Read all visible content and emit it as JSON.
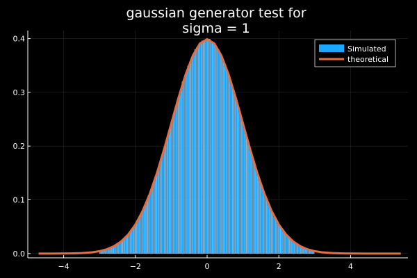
{
  "chart_data": {
    "type": "bar",
    "title_lines": [
      "gaussian generator test for",
      "sigma = 1"
    ],
    "xlabel": "",
    "ylabel": "",
    "xlim": [
      -5.0,
      5.6
    ],
    "ylim": [
      -0.008,
      0.415
    ],
    "x_ticks": [
      -4,
      -2,
      0,
      2,
      4
    ],
    "x_tick_labels": [
      "−4",
      "−2",
      "0",
      "2",
      "4"
    ],
    "y_ticks": [
      0.0,
      0.1,
      0.2,
      0.3,
      0.4
    ],
    "y_tick_labels": [
      "0.0",
      "0.1",
      "0.2",
      "0.3",
      "0.4"
    ],
    "grid": true,
    "legend_position": "top-right",
    "series": [
      {
        "name": "Simulated",
        "kind": "histogram",
        "color": "#1ba6ff",
        "bin_width": 0.05,
        "x": [
          -2.975,
          -2.925,
          -2.875,
          -2.825,
          -2.775,
          -2.725,
          -2.675,
          -2.625,
          -2.575,
          -2.525,
          -2.475,
          -2.425,
          -2.375,
          -2.325,
          -2.275,
          -2.225,
          -2.175,
          -2.125,
          -2.075,
          -2.025,
          -1.975,
          -1.925,
          -1.875,
          -1.825,
          -1.775,
          -1.725,
          -1.675,
          -1.625,
          -1.575,
          -1.525,
          -1.475,
          -1.425,
          -1.375,
          -1.325,
          -1.275,
          -1.225,
          -1.175,
          -1.125,
          -1.075,
          -1.025,
          -0.975,
          -0.925,
          -0.875,
          -0.825,
          -0.775,
          -0.725,
          -0.675,
          -0.625,
          -0.575,
          -0.525,
          -0.475,
          -0.425,
          -0.375,
          -0.325,
          -0.275,
          -0.225,
          -0.175,
          -0.125,
          -0.075,
          -0.025,
          0.025,
          0.075,
          0.125,
          0.175,
          0.225,
          0.275,
          0.325,
          0.375,
          0.425,
          0.475,
          0.525,
          0.575,
          0.625,
          0.675,
          0.725,
          0.775,
          0.825,
          0.875,
          0.925,
          0.975,
          1.025,
          1.075,
          1.125,
          1.175,
          1.225,
          1.275,
          1.325,
          1.375,
          1.425,
          1.475,
          1.525,
          1.575,
          1.625,
          1.675,
          1.725,
          1.775,
          1.825,
          1.875,
          1.925,
          1.975,
          2.025,
          2.075,
          2.125,
          2.175,
          2.225,
          2.275,
          2.325,
          2.375,
          2.425,
          2.475,
          2.525,
          2.575,
          2.625,
          2.675,
          2.725,
          2.775,
          2.825,
          2.875,
          2.925,
          2.975
        ],
        "values": [
          0.005,
          0.005,
          0.006,
          0.007,
          0.009,
          0.01,
          0.011,
          0.013,
          0.015,
          0.016,
          0.019,
          0.021,
          0.024,
          0.027,
          0.03,
          0.033,
          0.037,
          0.041,
          0.046,
          0.05,
          0.057,
          0.061,
          0.068,
          0.076,
          0.082,
          0.089,
          0.097,
          0.108,
          0.116,
          0.126,
          0.134,
          0.144,
          0.154,
          0.165,
          0.178,
          0.188,
          0.2,
          0.212,
          0.222,
          0.235,
          0.248,
          0.26,
          0.273,
          0.283,
          0.295,
          0.306,
          0.32,
          0.327,
          0.338,
          0.349,
          0.356,
          0.364,
          0.372,
          0.38,
          0.384,
          0.388,
          0.393,
          0.396,
          0.397,
          0.398,
          0.398,
          0.399,
          0.395,
          0.393,
          0.389,
          0.385,
          0.379,
          0.373,
          0.364,
          0.356,
          0.348,
          0.339,
          0.329,
          0.318,
          0.306,
          0.296,
          0.284,
          0.272,
          0.261,
          0.247,
          0.236,
          0.222,
          0.212,
          0.201,
          0.189,
          0.178,
          0.166,
          0.155,
          0.144,
          0.135,
          0.126,
          0.115,
          0.106,
          0.098,
          0.089,
          0.083,
          0.075,
          0.068,
          0.062,
          0.055,
          0.051,
          0.046,
          0.041,
          0.037,
          0.033,
          0.03,
          0.027,
          0.023,
          0.021,
          0.019,
          0.017,
          0.014,
          0.013,
          0.011,
          0.009,
          0.008,
          0.007,
          0.006,
          0.005,
          0.005
        ]
      },
      {
        "name": "theoretical",
        "kind": "line",
        "color": "#e26f46",
        "x": [
          -4.7,
          -4.4,
          -4.1,
          -3.8,
          -3.5,
          -3.2,
          -3.0,
          -2.8,
          -2.6,
          -2.4,
          -2.2,
          -2.0,
          -1.8,
          -1.6,
          -1.4,
          -1.2,
          -1.0,
          -0.8,
          -0.6,
          -0.4,
          -0.2,
          0.0,
          0.2,
          0.4,
          0.6,
          0.8,
          1.0,
          1.2,
          1.4,
          1.6,
          1.8,
          2.0,
          2.2,
          2.4,
          2.6,
          2.8,
          3.0,
          3.2,
          3.5,
          3.8,
          4.1,
          4.4,
          4.7,
          5.0,
          5.4
        ],
        "values": [
          0.0,
          0.0,
          0.0001,
          0.0003,
          0.0009,
          0.0024,
          0.0044,
          0.0079,
          0.0136,
          0.0224,
          0.0355,
          0.054,
          0.079,
          0.1109,
          0.1497,
          0.1942,
          0.242,
          0.2897,
          0.3332,
          0.3683,
          0.391,
          0.3989,
          0.391,
          0.3683,
          0.3332,
          0.2897,
          0.242,
          0.1942,
          0.1497,
          0.1109,
          0.079,
          0.054,
          0.0355,
          0.0224,
          0.0136,
          0.0079,
          0.0044,
          0.0024,
          0.0009,
          0.0003,
          0.0001,
          0.0,
          0.0,
          0.0,
          0.0
        ]
      }
    ]
  },
  "colors": {
    "background": "#000000",
    "axis": "#ffffff",
    "grid": "#2a2a2a",
    "legend_border": "#ffffff",
    "legend_bg": "#000000"
  }
}
